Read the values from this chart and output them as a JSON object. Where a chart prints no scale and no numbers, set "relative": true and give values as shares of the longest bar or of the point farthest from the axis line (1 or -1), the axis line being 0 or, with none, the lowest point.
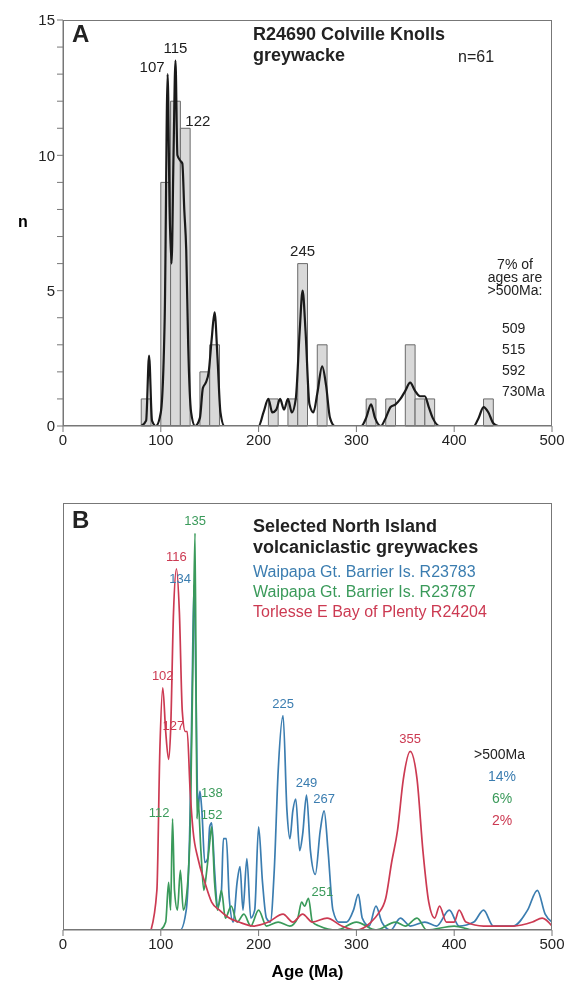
{
  "chart_data": [
    {
      "type": "histogram",
      "title": "R24690 Colville Knolls greywacke",
      "ylabel": "n",
      "annotations": [
        "A",
        "n=61",
        "7% of ages are >500Ma:",
        "509",
        "515",
        "592",
        "730Ma",
        {
          "text": "107",
          "x": 107,
          "y": 13
        },
        {
          "text": "115",
          "x": 115,
          "y": 13.5
        },
        {
          "text": "122",
          "x": 122,
          "y": 11
        },
        {
          "text": "245",
          "x": 245,
          "y": 6
        }
      ],
      "xlim": [
        0,
        500
      ],
      "xticks": [
        0,
        100,
        200,
        300,
        400,
        500
      ],
      "ylim": [
        0,
        15
      ],
      "yticks": [
        0,
        {
          "value": 1,
          "label": null
        },
        {
          "value": 2,
          "label": null
        },
        {
          "value": 3,
          "label": null
        },
        {
          "value": 4,
          "label": null
        },
        5,
        {
          "value": 6,
          "label": null
        },
        {
          "value": 7,
          "label": null
        },
        {
          "value": 8,
          "label": null
        },
        {
          "value": 9,
          "label": null
        },
        10,
        {
          "value": 11,
          "label": null
        },
        {
          "value": 12,
          "label": null
        },
        {
          "value": 13,
          "label": null
        },
        {
          "value": 14,
          "label": null
        },
        15
      ],
      "series": [
        {
          "color": "#d9d9d9",
          "bins": [
            80,
            90,
            100,
            110,
            120,
            130,
            140,
            150,
            160,
            170,
            180,
            190,
            200,
            210,
            220,
            230,
            240,
            250,
            260,
            270,
            280,
            290,
            300,
            310,
            320,
            330,
            340,
            350,
            360,
            370,
            380,
            390,
            400,
            410,
            420,
            430,
            440
          ],
          "values": [
            1,
            0,
            9,
            12,
            11,
            0,
            2,
            3,
            0,
            0,
            0,
            0,
            0,
            1,
            0,
            1,
            6,
            0,
            3,
            0,
            0,
            0,
            0,
            1,
            0,
            1,
            0,
            3,
            1,
            1,
            0,
            0,
            0,
            0,
            0,
            1
          ]
        },
        {
          "type": "line",
          "color": "#1a1a1a",
          "x": [
            80,
            85,
            88,
            91,
            95,
            100,
            104,
            107,
            109,
            111,
            113,
            115,
            117,
            120,
            122,
            124,
            126,
            128,
            131,
            135,
            140,
            143,
            146,
            149,
            152,
            155,
            158,
            161,
            165,
            200,
            205,
            210,
            214,
            218,
            222,
            226,
            230,
            234,
            238,
            242,
            245,
            248,
            252,
            256,
            260,
            265,
            269,
            273,
            278,
            305,
            310,
            315,
            319,
            325,
            330,
            335,
            340,
            345,
            350,
            355,
            360,
            365,
            370,
            374,
            378,
            385,
            420,
            425,
            430,
            435,
            440,
            445
          ],
          "values": [
            0,
            0.2,
            2.6,
            0.2,
            0,
            0.5,
            4,
            13,
            8,
            6,
            10,
            13.5,
            10,
            9.8,
            9.7,
            8,
            6.5,
            3,
            0.5,
            0,
            0.3,
            1.4,
            1.6,
            2,
            3.2,
            4.2,
            2.5,
            0.5,
            0,
            0,
            0.5,
            1,
            0.5,
            0.6,
            1,
            0.6,
            1,
            0.5,
            1,
            3.5,
            5,
            3.5,
            0.8,
            0.5,
            1.2,
            2.2,
            1.5,
            0.3,
            0,
            0,
            0.3,
            0.8,
            0.3,
            0,
            0.3,
            0.7,
            0.8,
            1,
            1.3,
            1.6,
            1.3,
            1.1,
            1.1,
            0.7,
            0.3,
            0,
            0,
            0.3,
            0.7,
            0.5,
            0.1,
            0
          ]
        }
      ]
    },
    {
      "type": "line",
      "relative": true,
      "title": "Selected North Island volcaniclastic greywackes",
      "xlabel": "Age (Ma)",
      "legend": "top",
      "annotations": [
        "B",
        ">500Ma",
        "14%",
        "6%",
        "2%",
        {
          "text": "134",
          "x": 134,
          "y": 0.87
        },
        {
          "text": "225",
          "x": 225,
          "y": 0.54
        },
        {
          "text": "249",
          "x": 249,
          "y": 0.34
        },
        {
          "text": "267",
          "x": 267,
          "y": 0.3
        },
        {
          "text": "112",
          "x": 112,
          "y": 0.28
        },
        {
          "text": "135",
          "x": 135,
          "y": 1
        },
        {
          "text": "138",
          "x": 138,
          "y": 0.33
        },
        {
          "text": "152",
          "x": 152,
          "y": 0.26
        },
        {
          "text": "251",
          "x": 251,
          "y": 0.08
        },
        {
          "text": "102",
          "x": 102,
          "y": 0.61
        },
        {
          "text": "116",
          "x": 116,
          "y": 0.91
        },
        {
          "text": "127",
          "x": 127,
          "y": 0.5
        },
        {
          "text": "355",
          "x": 355,
          "y": 0.45
        }
      ],
      "xlim": [
        0,
        500
      ],
      "xticks": [
        0,
        100,
        200,
        300,
        400,
        500
      ],
      "series": [
        {
          "name": "Waipapa Gt. Barrier Is. R23783",
          "color": "#3b7db0",
          "x": [
            100,
            120,
            126,
            130,
            132,
            134,
            136,
            138,
            140,
            142,
            145,
            148,
            150,
            152,
            155,
            158,
            162,
            164,
            167,
            170,
            174,
            178,
            181,
            184,
            188,
            192,
            196,
            200,
            204,
            208,
            212,
            216,
            220,
            225,
            229,
            232,
            235,
            238,
            242,
            245,
            249,
            253,
            258,
            263,
            267,
            271,
            276,
            282,
            290,
            297,
            302,
            306,
            313,
            320,
            326,
            335,
            345,
            355,
            370,
            382,
            395,
            405,
            420,
            430,
            440,
            460,
            475,
            485,
            493,
            500
          ],
          "values": [
            0,
            0,
            0.05,
            0.3,
            0.6,
            0.87,
            0.6,
            0.3,
            0.35,
            0.3,
            0.17,
            0.18,
            0.26,
            0.27,
            0.15,
            0.06,
            0.1,
            0.23,
            0.23,
            0.08,
            0.02,
            0.12,
            0.16,
            0.05,
            0.18,
            0.03,
            0.05,
            0.26,
            0.12,
            0.03,
            0.02,
            0.15,
            0.4,
            0.54,
            0.3,
            0.23,
            0.3,
            0.33,
            0.2,
            0.24,
            0.34,
            0.2,
            0.14,
            0.25,
            0.3,
            0.2,
            0.05,
            0.02,
            0.02,
            0.05,
            0.09,
            0.03,
            0.01,
            0.06,
            0.02,
            0,
            0.03,
            0.01,
            0.02,
            0.01,
            0.05,
            0.01,
            0.02,
            0.05,
            0.01,
            0.01,
            0.05,
            0.1,
            0.04,
            0.02
          ]
        },
        {
          "name": "Waipapa Gt. Barrier Is. R23787",
          "color": "#3a9a5a",
          "x": [
            100,
            105,
            108,
            110,
            112,
            114,
            117,
            120,
            123,
            126,
            130,
            133,
            135,
            137,
            138,
            141,
            144,
            147,
            150,
            152,
            155,
            158,
            162,
            166,
            172,
            178,
            185,
            192,
            200,
            208,
            220,
            232,
            240,
            244,
            247,
            251,
            255,
            262,
            280,
            300,
            320,
            340,
            350,
            362,
            372,
            400,
            420,
            500
          ],
          "values": [
            0,
            0.02,
            0.12,
            0.05,
            0.28,
            0.1,
            0.05,
            0.15,
            0.05,
            0.08,
            0.25,
            0.7,
            1,
            0.28,
            0.33,
            0.2,
            0.1,
            0.15,
            0.22,
            0.26,
            0.12,
            0.05,
            0.1,
            0.03,
            0.06,
            0.02,
            0.04,
            0.01,
            0.05,
            0.01,
            0.02,
            0.01,
            0.03,
            0.07,
            0.06,
            0.08,
            0.02,
            0.01,
            0,
            0.02,
            0,
            0.02,
            0.01,
            0.03,
            0,
            0.01,
            0,
            0
          ]
        },
        {
          "name": "Torlesse E Bay of Plenty R24204",
          "color": "#cc3a52",
          "x": [
            90,
            96,
            99,
            102,
            105,
            108,
            110,
            113,
            116,
            119,
            122,
            125,
            127,
            130,
            133,
            138,
            145,
            152,
            160,
            170,
            180,
            195,
            210,
            225,
            235,
            245,
            255,
            270,
            285,
            300,
            315,
            322,
            330,
            336,
            342,
            348,
            355,
            362,
            368,
            374,
            380,
            385,
            392,
            400,
            405,
            412,
            430,
            460,
            480,
            490,
            500
          ],
          "values": [
            0,
            0.1,
            0.45,
            0.61,
            0.5,
            0.43,
            0.5,
            0.8,
            0.91,
            0.8,
            0.55,
            0.5,
            0.5,
            0.35,
            0.25,
            0.18,
            0.12,
            0.07,
            0.05,
            0.03,
            0.02,
            0.01,
            0.02,
            0.04,
            0.02,
            0.04,
            0.02,
            0.03,
            0.01,
            0,
            0.02,
            0.04,
            0.08,
            0.17,
            0.25,
            0.38,
            0.45,
            0.38,
            0.2,
            0.07,
            0.03,
            0.06,
            0.02,
            0.02,
            0.05,
            0.02,
            0.01,
            0.01,
            0.02,
            0.03,
            0.01
          ]
        }
      ]
    }
  ]
}
